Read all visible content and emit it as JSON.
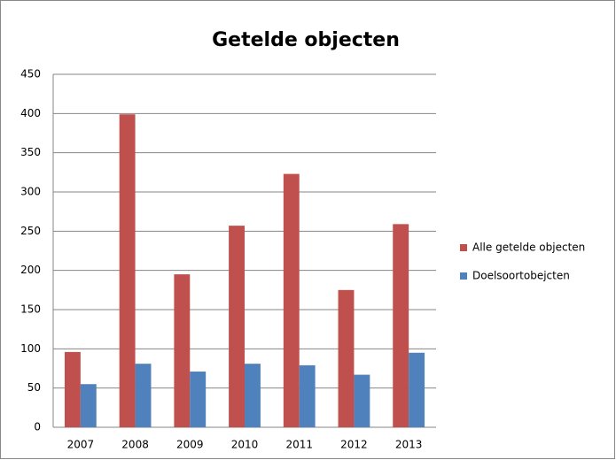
{
  "chart_data": {
    "type": "bar",
    "title": "Getelde objecten",
    "categories": [
      "2007",
      "2008",
      "2009",
      "2010",
      "2011",
      "2012",
      "2013"
    ],
    "series": [
      {
        "name": "Alle getelde objecten",
        "color": "#c0504d",
        "values": [
          96,
          399,
          195,
          257,
          323,
          175,
          259
        ]
      },
      {
        "name": "Doelsoortobejcten",
        "color": "#4f81bd",
        "values": [
          55,
          81,
          71,
          81,
          79,
          67,
          95
        ]
      }
    ],
    "ylim": [
      0,
      450
    ],
    "yticks": [
      0,
      50,
      100,
      150,
      200,
      250,
      300,
      350,
      400,
      450
    ],
    "grid": true,
    "legend": "right"
  }
}
